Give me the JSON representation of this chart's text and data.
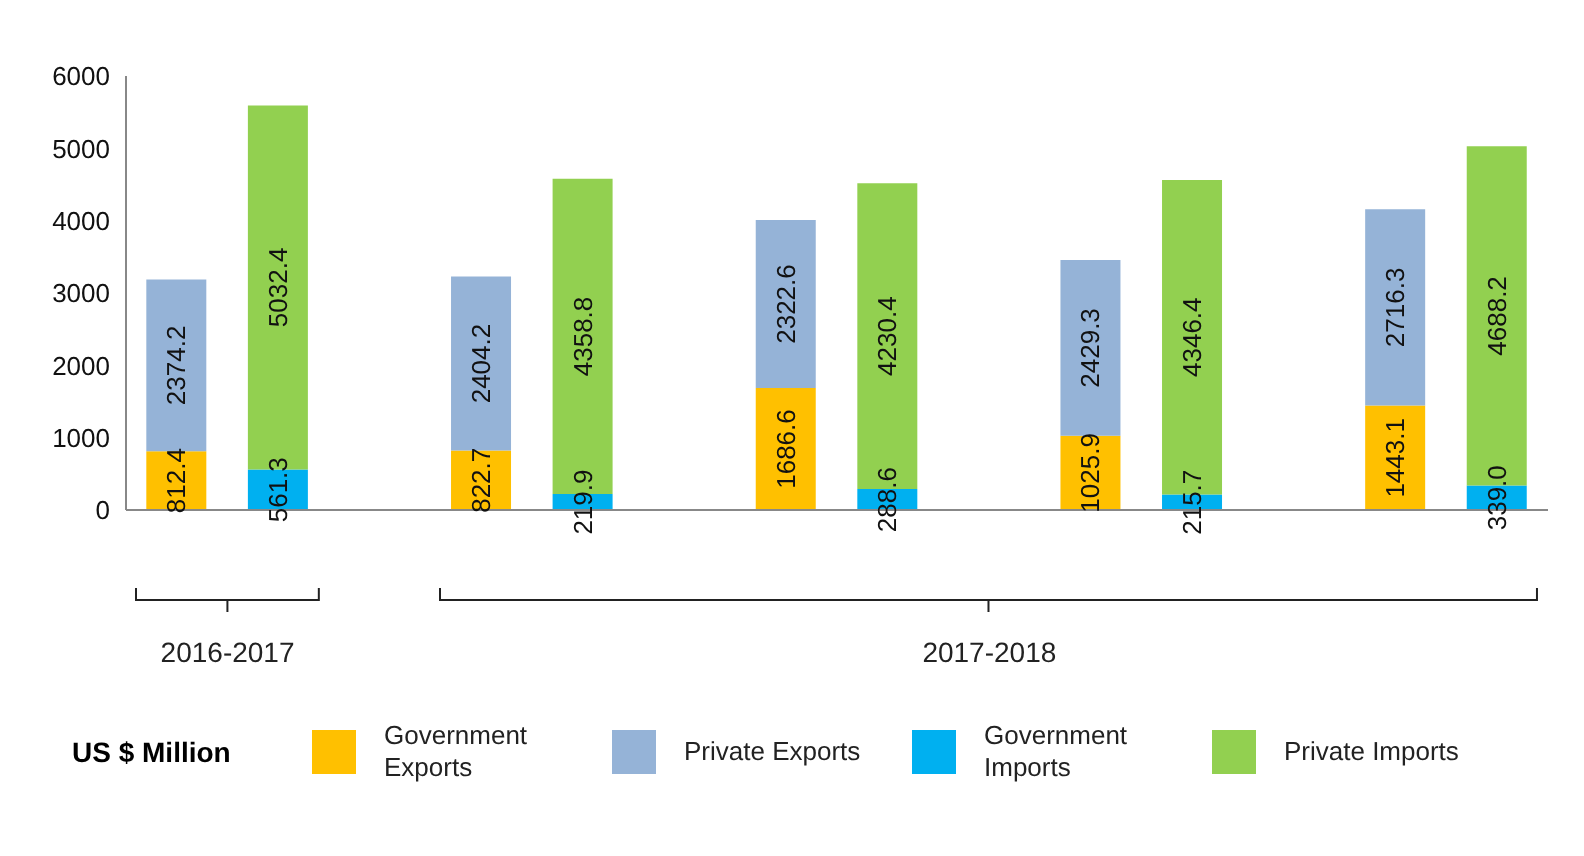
{
  "chart_data": {
    "type": "bar",
    "stacked": true,
    "legend_title": "US $ Million",
    "legend": "bottom",
    "grid": false,
    "categories": [
      null,
      null,
      null,
      null,
      null,
      null,
      null,
      null,
      null,
      null,
      null,
      null,
      null,
      null
    ],
    "ylim": [
      0,
      6000
    ],
    "yticks": [
      0,
      1000,
      2000,
      3000,
      4000,
      5000,
      6000
    ],
    "annotations": [
      "2016-2017",
      "2017-2018"
    ],
    "series": [
      {
        "name": "Government Exports",
        "color": "#ffc000",
        "values": [
          812.4,
          null,
          null,
          822.7,
          null,
          null,
          1686.6,
          null,
          null,
          1025.9,
          null,
          null,
          1443.1,
          null
        ],
        "value_labels": [
          "812.4",
          null,
          null,
          "822.7",
          null,
          null,
          "1686.6",
          null,
          null,
          "1025.9",
          null,
          null,
          "1443.1",
          null
        ]
      },
      {
        "name": "Private Exports",
        "color": "#95b3d7",
        "values": [
          2374.2,
          null,
          null,
          2404.2,
          null,
          null,
          2322.6,
          null,
          null,
          2429.3,
          null,
          null,
          2716.3,
          null
        ],
        "value_labels": [
          "2374.2",
          null,
          null,
          "2404.2",
          null,
          null,
          "2322.6",
          null,
          null,
          "2429.3",
          null,
          null,
          "2716.3",
          null
        ]
      },
      {
        "name": "Government Imports",
        "color": "#00b0f0",
        "values": [
          null,
          561.3,
          null,
          null,
          219.9,
          null,
          null,
          288.6,
          null,
          null,
          215.7,
          null,
          null,
          339.0
        ],
        "value_labels": [
          null,
          "561.3",
          null,
          null,
          "219.9",
          null,
          null,
          "288.6",
          null,
          null,
          "215.7",
          null,
          null,
          "339.0"
        ]
      },
      {
        "name": "Private Imports",
        "color": "#92d050",
        "values": [
          null,
          5032.4,
          null,
          null,
          4358.8,
          null,
          null,
          4230.4,
          null,
          null,
          4346.4,
          null,
          null,
          4688.2
        ],
        "value_labels": [
          null,
          "5032.4",
          null,
          null,
          "4358.8",
          null,
          null,
          "4230.4",
          null,
          null,
          "4346.4",
          null,
          null,
          "4688.2"
        ]
      }
    ]
  }
}
